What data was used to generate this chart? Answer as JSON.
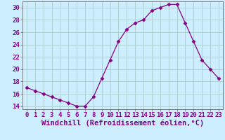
{
  "hours": [
    0,
    1,
    2,
    3,
    4,
    5,
    6,
    7,
    8,
    9,
    10,
    11,
    12,
    13,
    14,
    15,
    16,
    17,
    18,
    19,
    20,
    21,
    22,
    23
  ],
  "values": [
    17.0,
    16.5,
    16.0,
    15.5,
    15.0,
    14.5,
    14.0,
    14.0,
    15.5,
    18.5,
    21.5,
    24.5,
    26.5,
    27.5,
    28.0,
    29.5,
    30.0,
    30.5,
    30.5,
    27.5,
    24.5,
    21.5,
    20.0,
    18.5
  ],
  "line_color": "#880088",
  "marker": "D",
  "marker_size": 2.5,
  "background_color": "#cceeff",
  "grid_color": "#aacccc",
  "xlabel": "Windchill (Refroidissement éolien,°C)",
  "ylim": [
    13.5,
    31.0
  ],
  "yticks": [
    14,
    16,
    18,
    20,
    22,
    24,
    26,
    28,
    30
  ],
  "xlim": [
    -0.5,
    23.5
  ],
  "xticks": [
    0,
    1,
    2,
    3,
    4,
    5,
    6,
    7,
    8,
    9,
    10,
    11,
    12,
    13,
    14,
    15,
    16,
    17,
    18,
    19,
    20,
    21,
    22,
    23
  ],
  "tick_fontsize": 6.5,
  "xlabel_fontsize": 7.5
}
